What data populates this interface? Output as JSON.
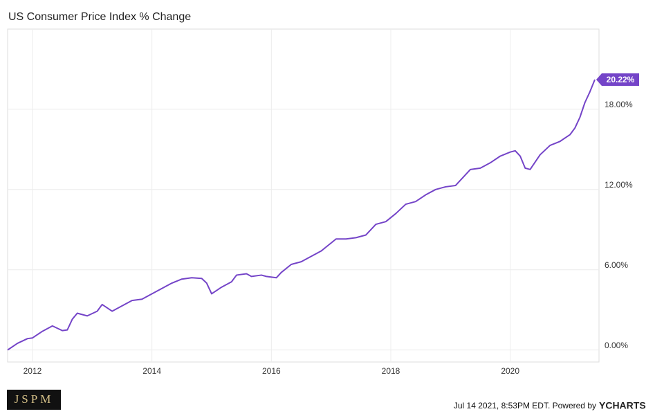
{
  "chart_data": {
    "type": "line",
    "title": "US Consumer Price Index % Change",
    "x": [
      "2011-08",
      "2011-10",
      "2011-12",
      "2012-01",
      "2012-03",
      "2012-05",
      "2012-07",
      "2012-08",
      "2012-09",
      "2012-10",
      "2012-12",
      "2013-02",
      "2013-03",
      "2013-05",
      "2013-07",
      "2013-09",
      "2013-11",
      "2014-01",
      "2014-03",
      "2014-05",
      "2014-07",
      "2014-09",
      "2014-11",
      "2014-12",
      "2015-01",
      "2015-03",
      "2015-05",
      "2015-06",
      "2015-08",
      "2015-09",
      "2015-11",
      "2015-12",
      "2016-02",
      "2016-03",
      "2016-05",
      "2016-07",
      "2016-09",
      "2016-11",
      "2016-12",
      "2017-02",
      "2017-04",
      "2017-06",
      "2017-08",
      "2017-10",
      "2017-12",
      "2018-02",
      "2018-04",
      "2018-06",
      "2018-08",
      "2018-10",
      "2018-12",
      "2019-02",
      "2019-03",
      "2019-05",
      "2019-07",
      "2019-09",
      "2019-11",
      "2020-01",
      "2020-02",
      "2020-03",
      "2020-04",
      "2020-05",
      "2020-07",
      "2020-09",
      "2020-11",
      "2021-01",
      "2021-02",
      "2021-03",
      "2021-04",
      "2021-05",
      "2021-06"
    ],
    "series": [
      {
        "name": "US Consumer Price Index % Change",
        "color": "#7444c8",
        "values": [
          0,
          0.5,
          0.85,
          0.9,
          1.4,
          1.8,
          1.45,
          1.5,
          2.3,
          2.75,
          2.55,
          2.9,
          3.4,
          2.9,
          3.3,
          3.7,
          3.8,
          4.2,
          4.6,
          5.0,
          5.3,
          5.4,
          5.35,
          5.0,
          4.2,
          4.7,
          5.1,
          5.6,
          5.7,
          5.5,
          5.6,
          5.5,
          5.4,
          5.8,
          6.4,
          6.6,
          7.0,
          7.4,
          7.7,
          8.3,
          8.3,
          8.4,
          8.6,
          9.4,
          9.6,
          10.2,
          10.9,
          11.1,
          11.6,
          12.0,
          12.2,
          12.3,
          12.7,
          13.5,
          13.6,
          14.0,
          14.5,
          14.8,
          14.9,
          14.5,
          13.6,
          13.5,
          14.6,
          15.3,
          15.6,
          16.1,
          16.6,
          17.4,
          18.5,
          19.3,
          20.22
        ]
      }
    ],
    "annotation": "20.22%",
    "xlim": [
      "2011-08",
      "2021-06"
    ],
    "xticks": [
      {
        "value": "2012-01",
        "label": "2012"
      },
      {
        "value": "2014-01",
        "label": "2014"
      },
      {
        "value": "2016-01",
        "label": "2016"
      },
      {
        "value": "2018-01",
        "label": "2018"
      },
      {
        "value": "2020-01",
        "label": "2020"
      }
    ],
    "ylim": [
      -0.9,
      24
    ],
    "yticks": [
      {
        "value": 0,
        "label": "0.00%"
      },
      {
        "value": 6,
        "label": "6.00%"
      },
      {
        "value": 12,
        "label": "12.00%"
      },
      {
        "value": 18,
        "label": "18.00%"
      }
    ],
    "grid": true
  },
  "footer": {
    "timestamp": "Jul 14 2021, 8:53PM EDT. Powered by",
    "brand": "YCHARTS",
    "logo": "JSPM"
  }
}
